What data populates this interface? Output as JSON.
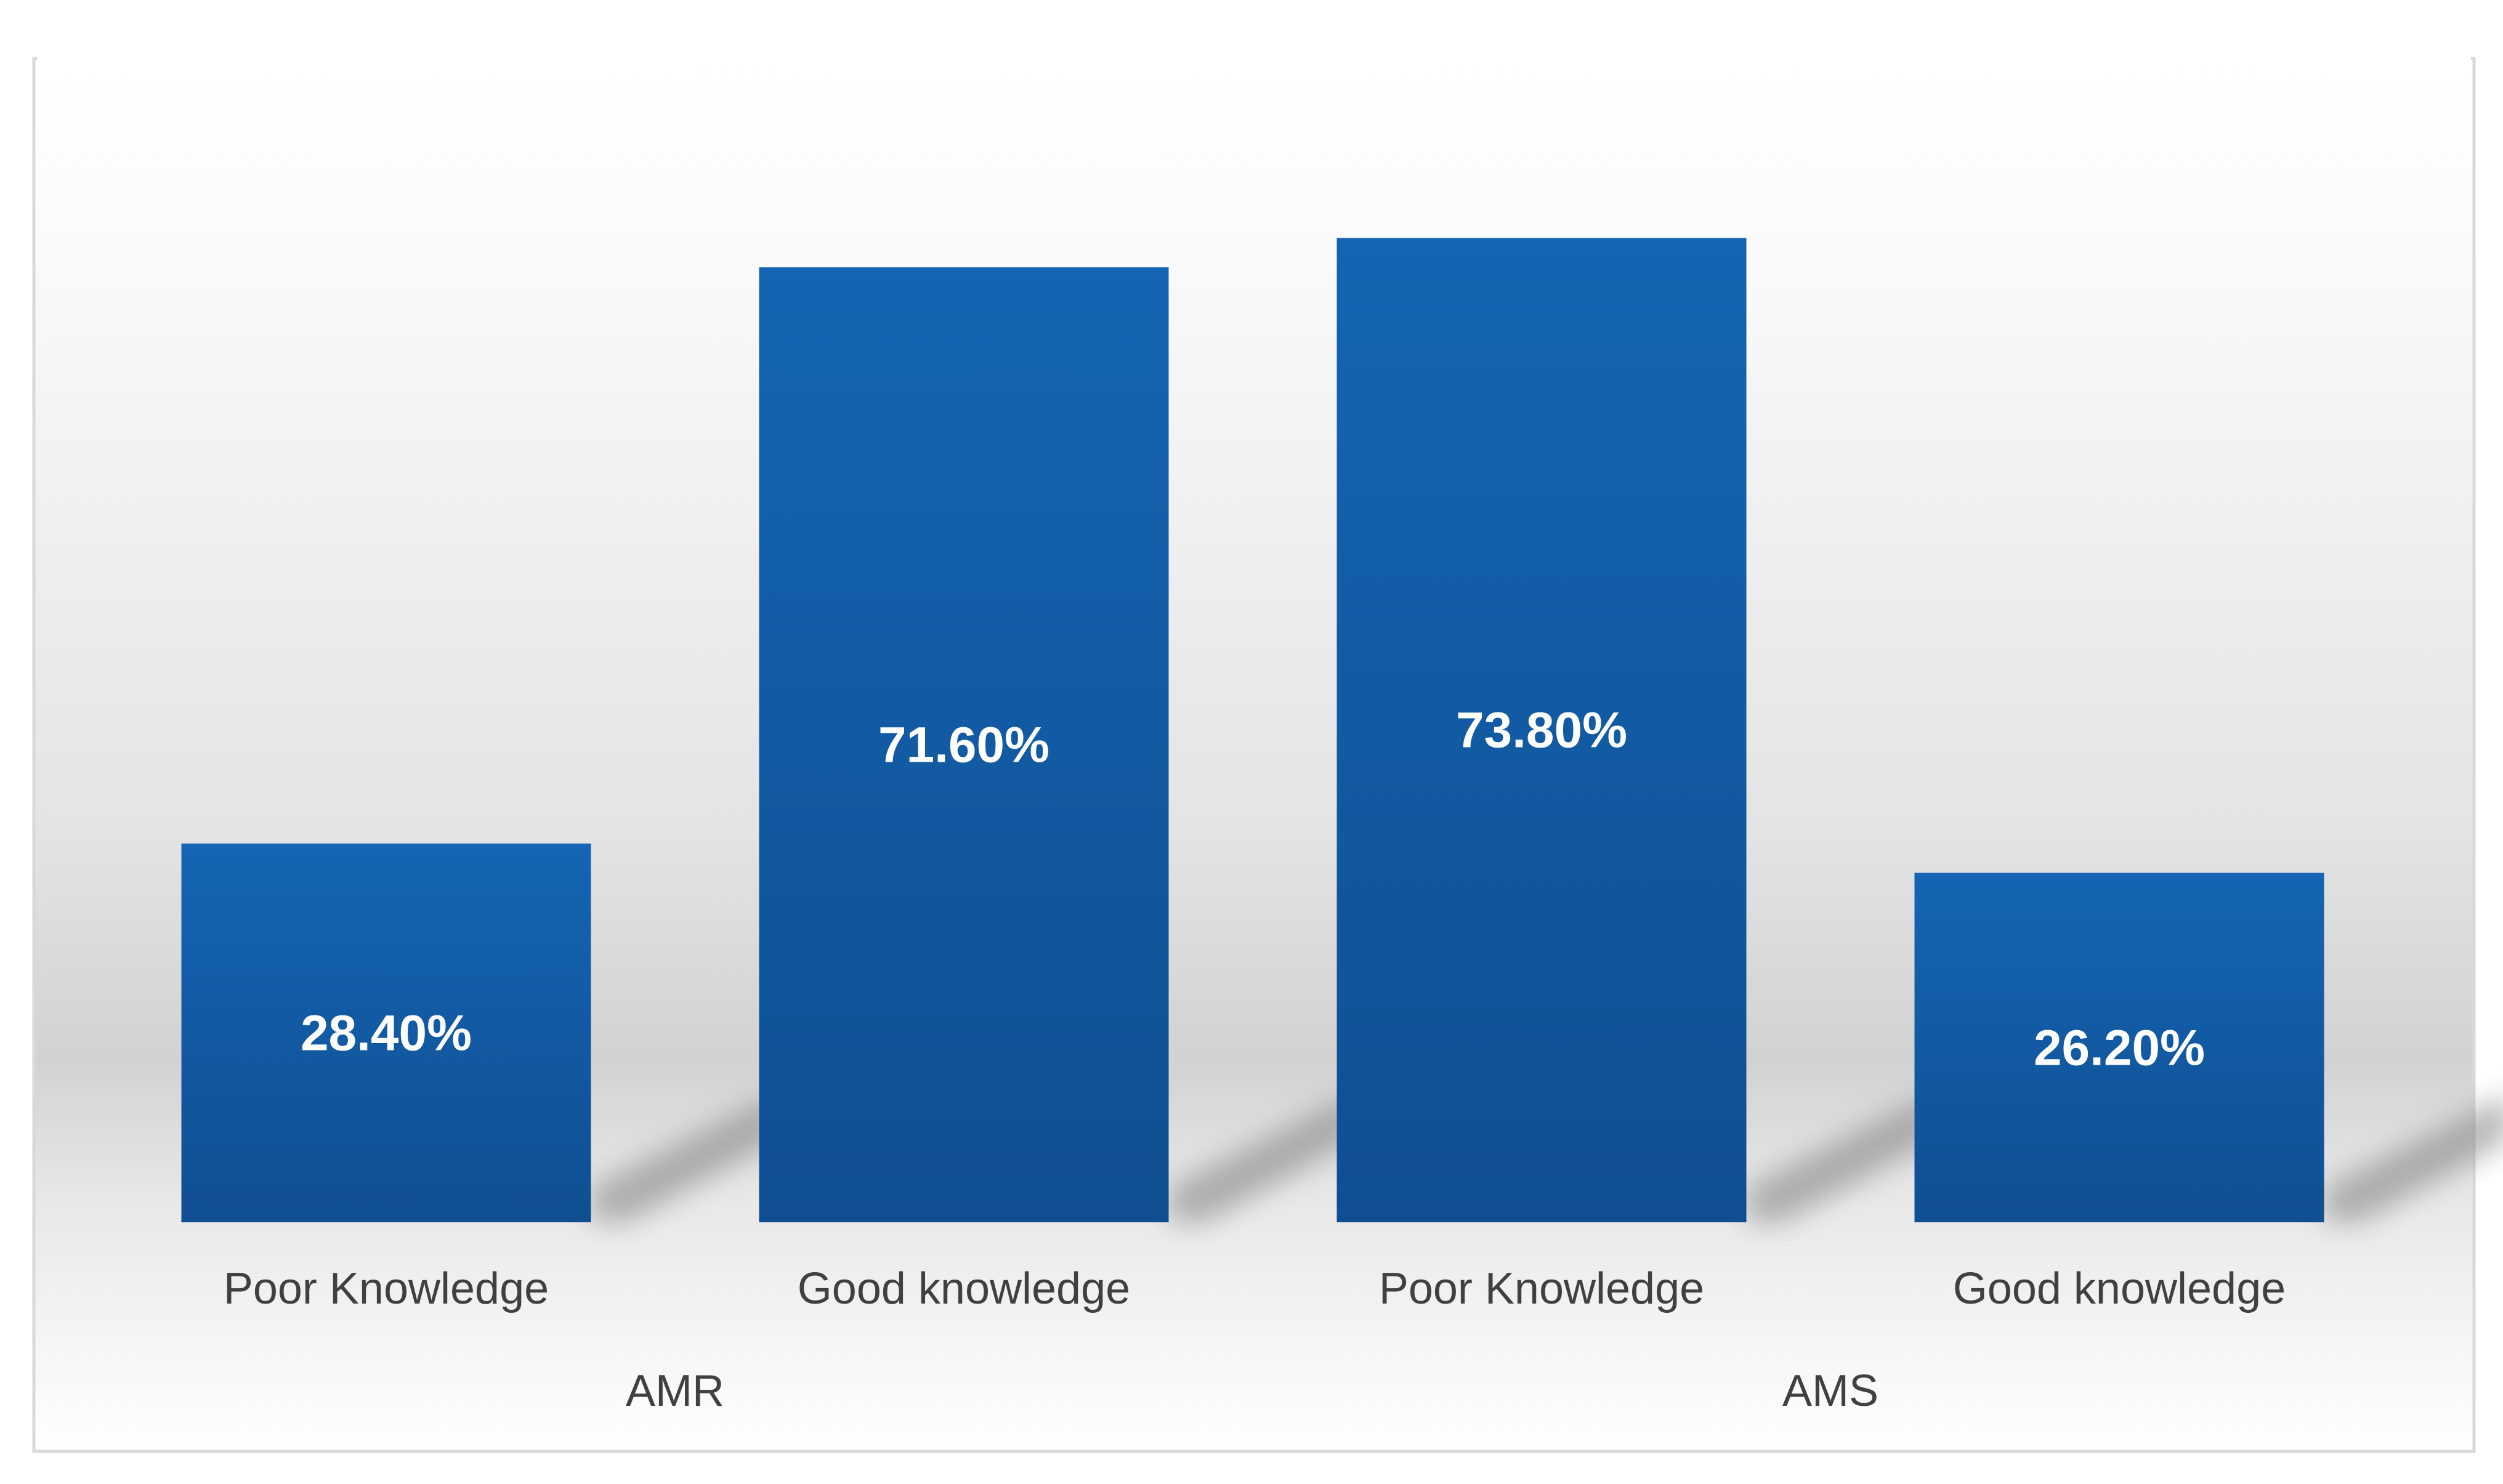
{
  "chart_data": {
    "type": "bar",
    "title": "",
    "xlabel": "",
    "ylabel": "",
    "ylim": [
      0,
      80
    ],
    "grid": false,
    "legend": "none",
    "groups": [
      {
        "name": "AMR",
        "categories": [
          "Poor Knowledge",
          "Good knowledge"
        ]
      },
      {
        "name": "AMS",
        "categories": [
          "Poor Knowledge",
          "Good knowledge"
        ]
      }
    ],
    "categories": [
      "Poor Knowledge",
      "Good knowledge",
      "Poor Knowledge",
      "Good knowledge"
    ],
    "values": [
      28.4,
      71.6,
      73.8,
      26.2
    ],
    "data_labels": [
      "28.40%",
      "71.60%",
      "73.80%",
      "26.20%"
    ],
    "colors": {
      "bar_top": "#1565b4",
      "bar_bottom": "#0f4f91",
      "label_text": "#ffffff",
      "axis_text": "#404040",
      "frame": "#d9d9d9"
    }
  }
}
